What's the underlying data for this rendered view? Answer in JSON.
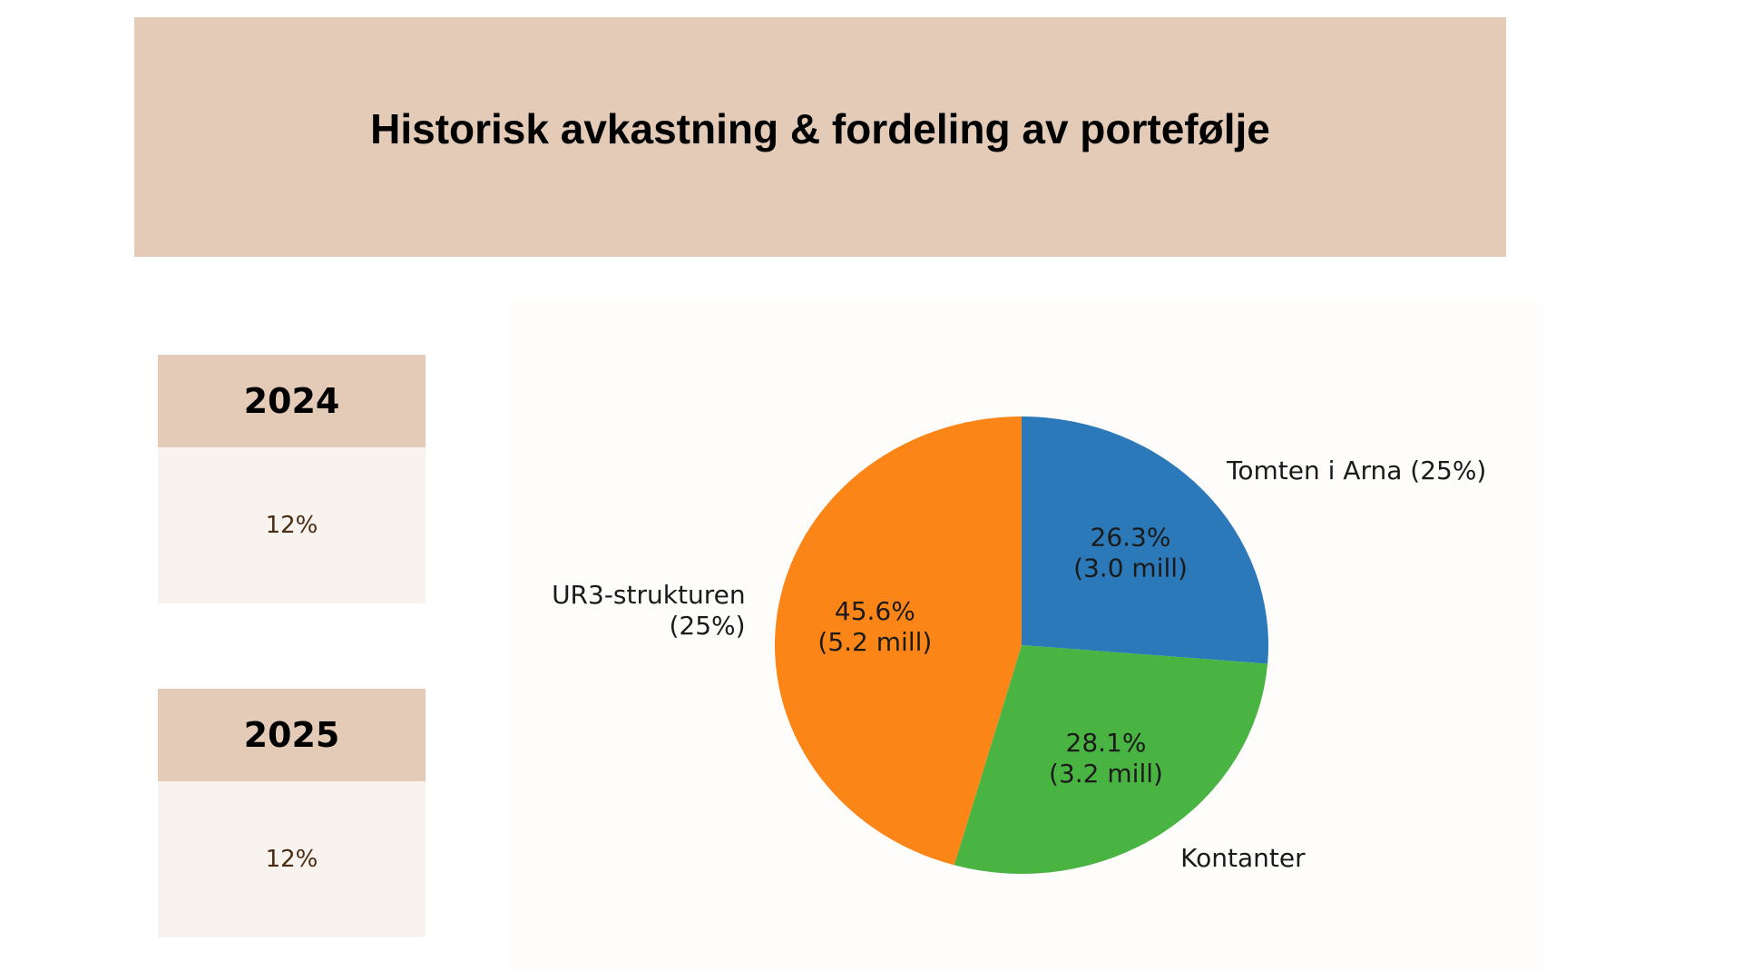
{
  "title": "Historisk avkastning & fordeling av portefølje",
  "returns": [
    {
      "year": "2024",
      "value": "12%"
    },
    {
      "year": "2025",
      "value": "12%"
    }
  ],
  "chart_data": {
    "type": "pie",
    "title": "",
    "slices": [
      {
        "label": "Tomten i Arna (25%)",
        "percent": 26.3,
        "value_text": "26.3%",
        "amount": "(3.0 mill)",
        "color": "#2c79b9"
      },
      {
        "label": "Kontanter",
        "percent": 28.1,
        "value_text": "28.1%",
        "amount": "(3.2 mill)",
        "color": "#4ab443"
      },
      {
        "label": "UR3-strukturen\n(25%)",
        "percent": 45.6,
        "value_text": "45.6%",
        "amount": "(5.2 mill)",
        "color": "#fb8517"
      }
    ],
    "start_angle_deg": 90,
    "direction": "clockwise"
  }
}
